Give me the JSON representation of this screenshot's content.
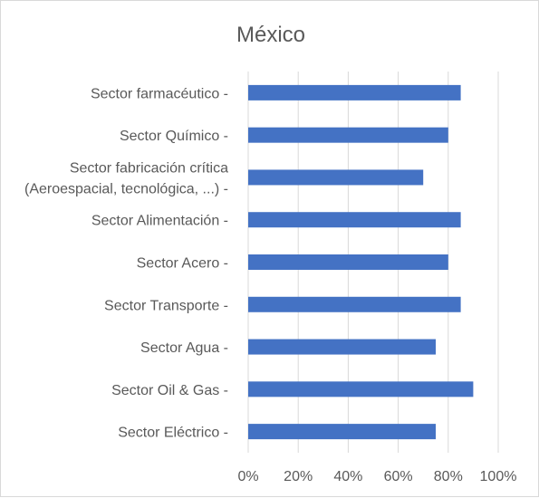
{
  "chart_data": {
    "type": "bar",
    "orientation": "horizontal",
    "title": "México",
    "categories": [
      [
        "Sector farmacéutico -"
      ],
      [
        "Sector Químico -"
      ],
      [
        "Sector fabricación crítica",
        "(Aeroespacial, tecnológica, ...) -"
      ],
      [
        "Sector Alimentación -"
      ],
      [
        "Sector Acero -"
      ],
      [
        "Sector Transporte -"
      ],
      [
        "Sector Agua -"
      ],
      [
        "Sector Oil & Gas -"
      ],
      [
        "Sector Eléctrico -"
      ]
    ],
    "values": [
      85,
      80,
      70,
      85,
      80,
      85,
      75,
      90,
      75
    ],
    "xlim": [
      0,
      100
    ],
    "x_ticks": [
      0,
      20,
      40,
      60,
      80,
      100
    ],
    "x_tick_labels": [
      "0%",
      "20%",
      "40%",
      "60%",
      "80%",
      "100%"
    ],
    "grid": true,
    "bar_color": "#4472c4",
    "xlabel": "",
    "ylabel": ""
  }
}
